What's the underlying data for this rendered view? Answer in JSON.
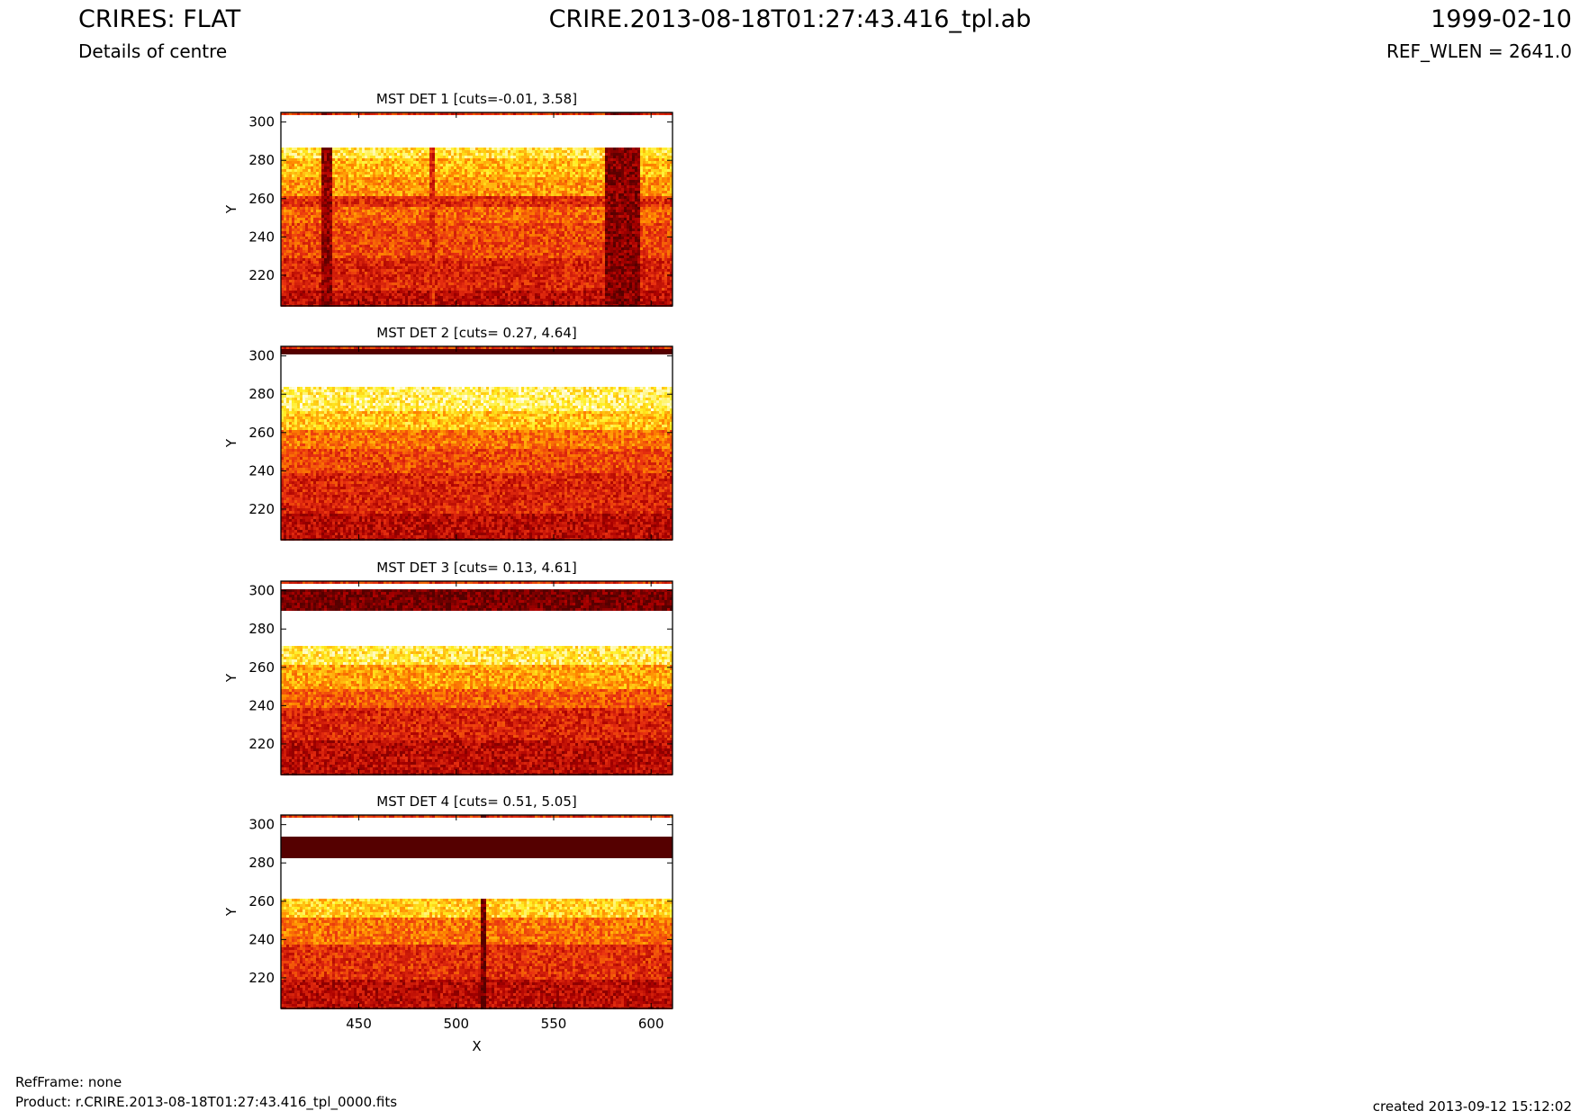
{
  "header": {
    "title_left": "CRIRES: FLAT",
    "subtitle_left": "Details of centre",
    "title_center": "CRIRE.2013-08-18T01:27:43.416_tpl.ab",
    "title_right": "1999-02-10",
    "subtitle_right": "REF_WLEN = 2641.0"
  },
  "footer": {
    "refframe": "RefFrame: none",
    "product": "Product: r.CRIRE.2013-08-18T01:27:43.416_tpl_0000.fits",
    "created": "created 2013-09-12 15:12:02"
  },
  "colormap": [
    "#550000",
    "#aa0000",
    "#e83010",
    "#ff8800",
    "#ffee20",
    "#ffffff"
  ],
  "chart_data": [
    {
      "type": "heatmap",
      "title": "MST DET 1 [cuts=-0.01, 3.58]",
      "ylabel": "Y",
      "xlabel": "",
      "xlim": [
        410,
        611
      ],
      "ylim": [
        204,
        305
      ],
      "yticks": [
        220,
        240,
        260,
        280,
        300
      ],
      "xticks": [],
      "rows": [
        {
          "y0": 204,
          "y1": 212,
          "level": 0.25
        },
        {
          "y0": 212,
          "y1": 230,
          "level": 0.35
        },
        {
          "y0": 230,
          "y1": 248,
          "level": 0.45
        },
        {
          "y0": 248,
          "y1": 256,
          "level": 0.52
        },
        {
          "y0": 256,
          "y1": 262,
          "level": 0.38
        },
        {
          "y0": 262,
          "y1": 272,
          "level": 0.62
        },
        {
          "y0": 272,
          "y1": 282,
          "level": 0.7
        },
        {
          "y0": 282,
          "y1": 288,
          "level": 0.8
        },
        {
          "y0": 288,
          "y1": 305,
          "level": 1.0
        }
      ],
      "columns": [
        {
          "x0": 430,
          "x1": 435,
          "level": 0.15
        },
        {
          "x0": 485,
          "x1": 488,
          "level": 0.35
        },
        {
          "x0": 576,
          "x1": 594,
          "level": 0.12
        }
      ]
    },
    {
      "type": "heatmap",
      "title": "MST DET 2 [cuts= 0.27, 4.64]",
      "ylabel": "Y",
      "xlabel": "",
      "xlim": [
        410,
        611
      ],
      "ylim": [
        204,
        305
      ],
      "yticks": [
        220,
        240,
        260,
        280,
        300
      ],
      "xticks": [],
      "rows": [
        {
          "y0": 204,
          "y1": 218,
          "level": 0.25
        },
        {
          "y0": 218,
          "y1": 240,
          "level": 0.35
        },
        {
          "y0": 240,
          "y1": 252,
          "level": 0.45
        },
        {
          "y0": 252,
          "y1": 262,
          "level": 0.55
        },
        {
          "y0": 262,
          "y1": 272,
          "level": 0.72
        },
        {
          "y0": 272,
          "y1": 284,
          "level": 0.85
        },
        {
          "y0": 284,
          "y1": 301,
          "level": 1.0
        },
        {
          "y0": 301,
          "y1": 305,
          "level": 0.0
        }
      ],
      "columns": []
    },
    {
      "type": "heatmap",
      "title": "MST DET 3 [cuts= 0.13, 4.61]",
      "ylabel": "Y",
      "xlabel": "",
      "xlim": [
        410,
        611
      ],
      "ylim": [
        204,
        305
      ],
      "yticks": [
        220,
        240,
        260,
        280,
        300
      ],
      "xticks": [],
      "rows": [
        {
          "y0": 204,
          "y1": 222,
          "level": 0.25
        },
        {
          "y0": 222,
          "y1": 240,
          "level": 0.35
        },
        {
          "y0": 240,
          "y1": 250,
          "level": 0.5
        },
        {
          "y0": 250,
          "y1": 262,
          "level": 0.65
        },
        {
          "y0": 262,
          "y1": 272,
          "level": 0.82
        },
        {
          "y0": 272,
          "y1": 290,
          "level": 1.0
        },
        {
          "y0": 290,
          "y1": 302,
          "level": 0.08
        },
        {
          "y0": 302,
          "y1": 305,
          "level": 1.0
        }
      ],
      "columns": []
    },
    {
      "type": "heatmap",
      "title": "MST DET 4 [cuts= 0.51, 5.05]",
      "ylabel": "Y",
      "xlabel": "X",
      "xlim": [
        410,
        611
      ],
      "ylim": [
        204,
        305
      ],
      "yticks": [
        220,
        240,
        260,
        280,
        300
      ],
      "xticks": [
        450,
        500,
        550,
        600
      ],
      "rows": [
        {
          "y0": 204,
          "y1": 220,
          "level": 0.25
        },
        {
          "y0": 220,
          "y1": 238,
          "level": 0.38
        },
        {
          "y0": 238,
          "y1": 252,
          "level": 0.55
        },
        {
          "y0": 252,
          "y1": 262,
          "level": 0.75
        },
        {
          "y0": 262,
          "y1": 283,
          "level": 1.0
        },
        {
          "y0": 283,
          "y1": 294,
          "level": 0.0
        },
        {
          "y0": 294,
          "y1": 305,
          "level": 1.0
        }
      ],
      "columns": [
        {
          "x0": 512,
          "x1": 514,
          "level": 0.05
        }
      ]
    }
  ]
}
